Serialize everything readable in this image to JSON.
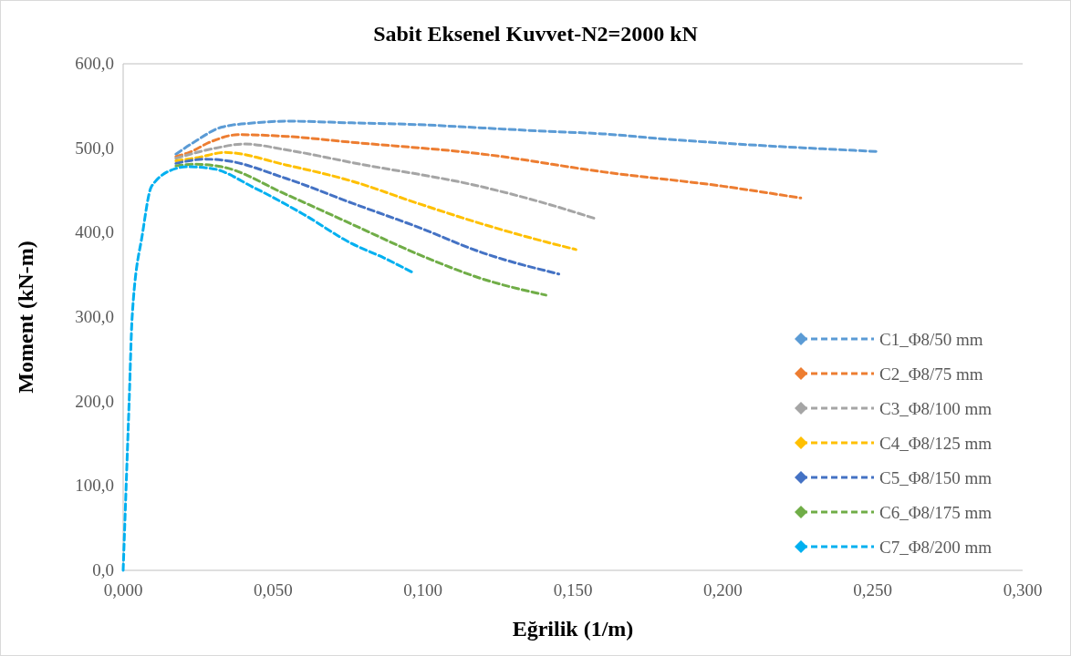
{
  "chart_data": {
    "type": "line",
    "title": "Sabit Eksenel Kuvvet-N2=2000 kN",
    "xlabel": "Eğrilik (1/m)",
    "ylabel": "Moment (kN-m)",
    "xlim": [
      0,
      0.3
    ],
    "ylim": [
      0,
      600
    ],
    "xticks": [
      {
        "value": 0,
        "label": "0,000"
      },
      {
        "value": 0.05,
        "label": "0,050"
      },
      {
        "value": 0.1,
        "label": "0,100"
      },
      {
        "value": 0.15,
        "label": "0,150"
      },
      {
        "value": 0.2,
        "label": "0,200"
      },
      {
        "value": 0.25,
        "label": "0,250"
      },
      {
        "value": 0.3,
        "label": "0,300"
      }
    ],
    "yticks": [
      {
        "value": 0,
        "label": "0,0"
      },
      {
        "value": 100,
        "label": "100,0"
      },
      {
        "value": 200,
        "label": "200,0"
      },
      {
        "value": 300,
        "label": "300,0"
      },
      {
        "value": 400,
        "label": "400,0"
      },
      {
        "value": 500,
        "label": "500,0"
      },
      {
        "value": 600,
        "label": "600,0"
      }
    ],
    "grid": false,
    "legend": "bottom right",
    "line_style": "dashed",
    "series": [
      {
        "name": "C1_Φ8/50 mm",
        "color": "#5b9bd5",
        "x": [
          0.0176,
          0.024,
          0.0329,
          0.0438,
          0.0545,
          0.0763,
          0.098,
          0.12,
          0.141,
          0.16,
          0.18,
          0.2,
          0.252
        ],
        "values": [
          493,
          508,
          525,
          530,
          532,
          530,
          528,
          524,
          520,
          517,
          511,
          506,
          496
        ]
      },
      {
        "name": "C2_Φ8/75 mm",
        "color": "#ed7d31",
        "x": [
          0.0176,
          0.022,
          0.0295,
          0.0383,
          0.0545,
          0.0763,
          0.12,
          0.16,
          0.2,
          0.226
        ],
        "values": [
          490,
          495,
          508,
          516,
          514,
          507,
          493,
          472,
          455,
          441
        ]
      },
      {
        "name": "C3_Φ8/100 mm",
        "color": "#a5a5a5",
        "x": [
          0.0176,
          0.0307,
          0.0405,
          0.0545,
          0.0763,
          0.12,
          0.1415,
          0.158
        ],
        "values": [
          488,
          500,
          505,
          498,
          483,
          454,
          434,
          416
        ]
      },
      {
        "name": "C4_Φ8/125 mm",
        "color": "#ffc000",
        "x": [
          0.0176,
          0.025,
          0.0338,
          0.0545,
          0.0763,
          0.098,
          0.12,
          0.141,
          0.151
        ],
        "values": [
          485,
          489,
          495,
          480,
          461,
          435,
          410,
          389,
          380
        ]
      },
      {
        "name": "C5_Φ8/150 mm",
        "color": "#4472c4",
        "x": [
          0.0176,
          0.0274,
          0.0329,
          0.0545,
          0.0763,
          0.098,
          0.12,
          0.1453
        ],
        "values": [
          482,
          487,
          486,
          464,
          435,
          407,
          376,
          351
        ]
      },
      {
        "name": "C6_Φ8/175 mm",
        "color": "#70ad47",
        "x": [
          0.0176,
          0.024,
          0.0329,
          0.0545,
          0.0763,
          0.098,
          0.12,
          0.141
        ],
        "values": [
          479,
          481,
          478,
          445,
          410,
          375,
          345,
          326
        ]
      },
      {
        "name": "C7_Φ8/200 mm",
        "color": "#00b0f0",
        "x": [
          0,
          0.002,
          0.003,
          0.0065,
          0.0095,
          0.0176,
          0.021,
          0.0295,
          0.0438,
          0.06,
          0.0763,
          0.087,
          0.0965
        ],
        "values": [
          0,
          200,
          300,
          400,
          455,
          476,
          478,
          476,
          453,
          422,
          387,
          370,
          353
        ]
      }
    ]
  }
}
